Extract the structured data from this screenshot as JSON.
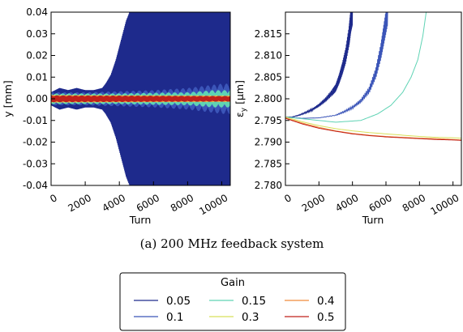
{
  "caption": "(a)  200 MHz feedback system",
  "legend": {
    "title": "Gain",
    "placement": "bottom-center",
    "entries": [
      {
        "label": "0.05",
        "color": "#1e2a8c"
      },
      {
        "label": "0.1",
        "color": "#3b55b8"
      },
      {
        "label": "0.15",
        "color": "#5fd3b4"
      },
      {
        "label": "0.3",
        "color": "#d8e05a"
      },
      {
        "label": "0.4",
        "color": "#f08a3a"
      },
      {
        "label": "0.5",
        "color": "#c0201a"
      }
    ]
  },
  "chart_data": [
    {
      "type": "area",
      "xlabel": "Turn",
      "ylabel": "y [mm]",
      "xlim": [
        0,
        10500
      ],
      "ylim": [
        -0.04,
        0.04
      ],
      "xticks": [
        "0",
        "2000",
        "4000",
        "6000",
        "8000",
        "10000"
      ],
      "yticks": [
        "0.04",
        "0.03",
        "0.02",
        "0.01",
        "0.00",
        "-0.01",
        "-0.02",
        "-0.03",
        "-0.04"
      ],
      "grid": false,
      "series": [
        {
          "name": "0.05",
          "color": "#1e2a8c",
          "envelope": [
            [
              0,
              0.003
            ],
            [
              500,
              0.005
            ],
            [
              1000,
              0.004
            ],
            [
              1500,
              0.005
            ],
            [
              2000,
              0.004
            ],
            [
              2500,
              0.004
            ],
            [
              3000,
              0.005
            ],
            [
              3200,
              0.007
            ],
            [
              3500,
              0.011
            ],
            [
              3800,
              0.018
            ],
            [
              4000,
              0.024
            ],
            [
              4200,
              0.03
            ],
            [
              4400,
              0.036
            ],
            [
              4600,
              0.04
            ],
            [
              10500,
              0.04
            ]
          ]
        },
        {
          "name": "0.1",
          "color": "#3b55b8",
          "envelope": [
            [
              0,
              0.003
            ],
            [
              2000,
              0.003
            ],
            [
              4000,
              0.0035
            ],
            [
              6000,
              0.004
            ],
            [
              8000,
              0.005
            ],
            [
              9000,
              0.006
            ],
            [
              10000,
              0.007
            ],
            [
              10500,
              0.007
            ]
          ]
        },
        {
          "name": "0.15",
          "color": "#5fd3b4",
          "envelope": [
            [
              0,
              0.0025
            ],
            [
              2000,
              0.0025
            ],
            [
              4000,
              0.0025
            ],
            [
              6000,
              0.0028
            ],
            [
              8000,
              0.003
            ],
            [
              9500,
              0.004
            ],
            [
              10500,
              0.004
            ]
          ]
        },
        {
          "name": "0.3",
          "color": "#d8e05a",
          "envelope": [
            [
              0,
              0.0018
            ],
            [
              10500,
              0.0015
            ]
          ]
        },
        {
          "name": "0.4",
          "color": "#f08a3a",
          "envelope": [
            [
              0,
              0.0017
            ],
            [
              10500,
              0.0014
            ]
          ]
        },
        {
          "name": "0.5",
          "color": "#c0201a",
          "envelope": [
            [
              0,
              0.0016
            ],
            [
              10500,
              0.0013
            ]
          ]
        }
      ]
    },
    {
      "type": "line",
      "xlabel": "Turn",
      "ylabel": "ε_y [μm]",
      "xlim": [
        0,
        10500
      ],
      "ylim": [
        2.78,
        2.82
      ],
      "xticks": [
        "0",
        "2000",
        "4000",
        "6000",
        "8000",
        "10000"
      ],
      "yticks": [
        "2.815",
        "2.810",
        "2.805",
        "2.800",
        "2.795",
        "2.790",
        "2.785",
        "2.780"
      ],
      "grid": false,
      "series": [
        {
          "name": "0.05",
          "color": "#1e2a8c",
          "x": [
            0,
            400,
            800,
            1200,
            1600,
            2000,
            2400,
            2800,
            3000,
            3200,
            3400,
            3600,
            3800,
            3900,
            4000
          ],
          "y": [
            2.7958,
            2.7958,
            2.7962,
            2.7968,
            2.7975,
            2.7985,
            2.7998,
            2.8015,
            2.8025,
            2.8045,
            2.807,
            2.81,
            2.8145,
            2.818,
            2.82
          ]
        },
        {
          "name": "0.1",
          "color": "#3b55b8",
          "x": [
            0,
            1000,
            2000,
            3000,
            3500,
            4000,
            4500,
            5000,
            5400,
            5700,
            5900,
            6100
          ],
          "y": [
            2.7958,
            2.7955,
            2.7956,
            2.7962,
            2.797,
            2.798,
            2.7995,
            2.802,
            2.806,
            2.811,
            2.8155,
            2.82
          ]
        },
        {
          "name": "0.15",
          "color": "#5fd3b4",
          "x": [
            0,
            1500,
            3000,
            4500,
            5500,
            6300,
            7000,
            7500,
            7900,
            8200,
            8400
          ],
          "y": [
            2.7958,
            2.7952,
            2.7946,
            2.795,
            2.7965,
            2.7985,
            2.8015,
            2.805,
            2.809,
            2.8145,
            2.82
          ]
        },
        {
          "name": "0.3",
          "color": "#d8e05a",
          "x": [
            0,
            1000,
            2000,
            3000,
            4000,
            5000,
            6000,
            7000,
            8000,
            9000,
            10000,
            10500
          ],
          "y": [
            2.7958,
            2.7947,
            2.7938,
            2.7931,
            2.7926,
            2.7922,
            2.7919,
            2.7916,
            2.7913,
            2.7911,
            2.791,
            2.7909
          ]
        },
        {
          "name": "0.4",
          "color": "#f08a3a",
          "x": [
            0,
            1000,
            2000,
            3000,
            4000,
            5000,
            6000,
            7000,
            8000,
            9000,
            10000,
            10500
          ],
          "y": [
            2.7956,
            2.7944,
            2.7934,
            2.7926,
            2.792,
            2.7916,
            2.7913,
            2.7911,
            2.7909,
            2.7908,
            2.7906,
            2.7905
          ]
        },
        {
          "name": "0.5",
          "color": "#c0201a",
          "x": [
            0,
            1000,
            2000,
            3000,
            4000,
            5000,
            6000,
            7000,
            8000,
            9000,
            10000,
            10500
          ],
          "y": [
            2.7955,
            2.7942,
            2.7932,
            2.7925,
            2.7919,
            2.7915,
            2.7912,
            2.791,
            2.7908,
            2.7906,
            2.7905,
            2.7904
          ]
        }
      ]
    }
  ]
}
